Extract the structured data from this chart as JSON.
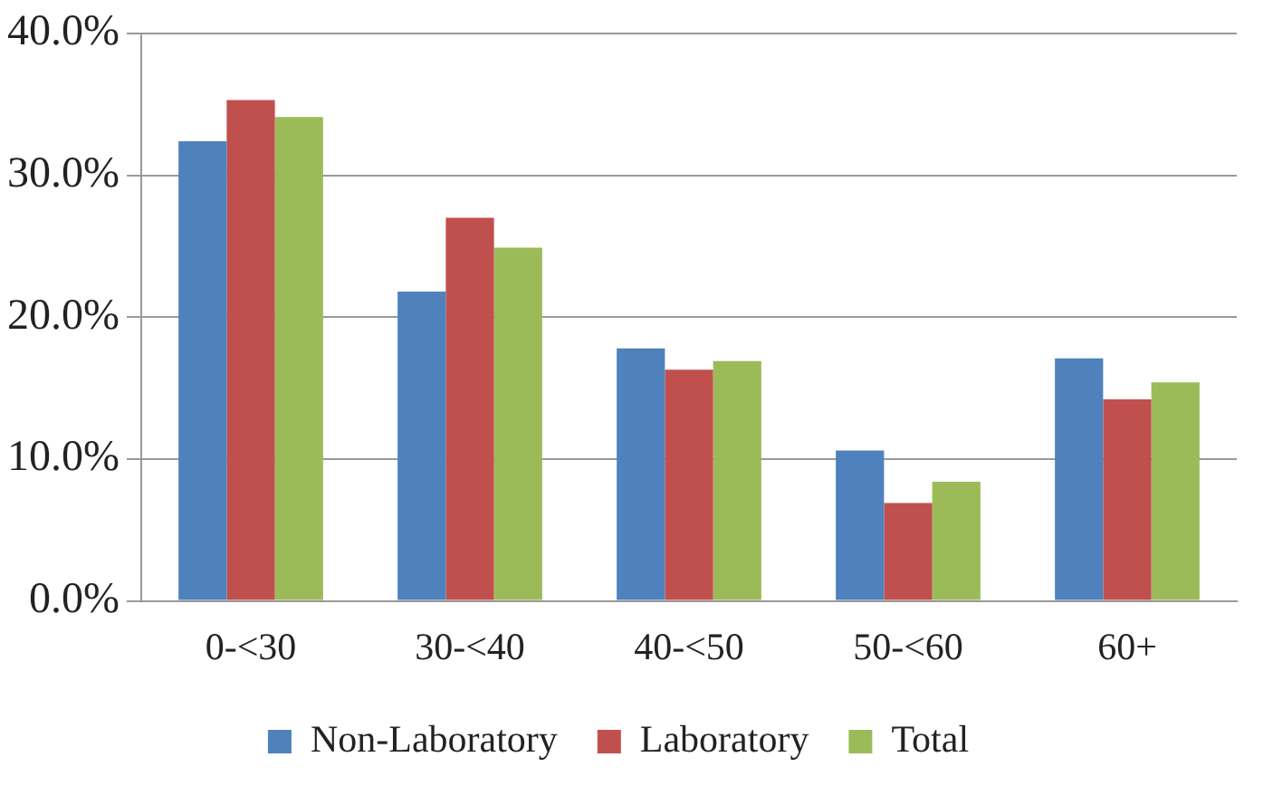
{
  "chart_data": {
    "type": "bar",
    "categories": [
      "0-<30",
      "30-<40",
      "40-<50",
      "50-<60",
      "60+"
    ],
    "series": [
      {
        "name": "Non-Laboratory",
        "color": "#4f81bd",
        "values": [
          32.4,
          21.8,
          17.8,
          10.6,
          17.1
        ]
      },
      {
        "name": "Laboratory",
        "color": "#c0504d",
        "values": [
          35.3,
          27.0,
          16.3,
          6.9,
          14.2
        ]
      },
      {
        "name": "Total",
        "color": "#9bbb59",
        "values": [
          34.1,
          24.9,
          16.9,
          8.4,
          15.4
        ]
      }
    ],
    "ylim": [
      0,
      40
    ],
    "yticks": [
      {
        "value": 0,
        "label": "0.0%"
      },
      {
        "value": 10,
        "label": "10.0%"
      },
      {
        "value": 20,
        "label": "20.0%"
      },
      {
        "value": 30,
        "label": "30.0%"
      },
      {
        "value": 40,
        "label": "40.0%"
      }
    ],
    "grid": "y",
    "legend": "bottom"
  }
}
